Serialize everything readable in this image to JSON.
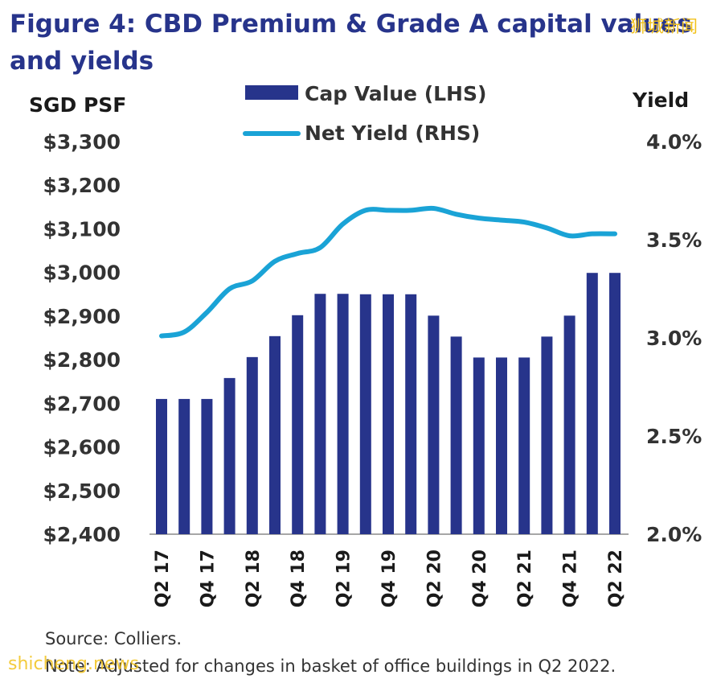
{
  "chart_data": {
    "type": "bar+line",
    "title_line1": "Figure 4: CBD Premium & Grade A capital values",
    "title_line2": "and yields",
    "ylabel_left": "SGD PSF",
    "ylabel_right": "Yield",
    "left_ticks": [
      "$3,300",
      "$3,200",
      "$3,100",
      "$3,000",
      "$2,900",
      "$2,800",
      "$2,700",
      "$2,600",
      "$2,500",
      "$2,400"
    ],
    "right_ticks": [
      "4.0%",
      "3.5%",
      "3.0%",
      "2.5%",
      "2.0%"
    ],
    "ylim_left": [
      2400,
      3300
    ],
    "ylim_right": [
      2.0,
      4.0
    ],
    "x_tick_labels": [
      "Q2 17",
      "Q4 17",
      "Q2 18",
      "Q4 18",
      "Q2 19",
      "Q4 19",
      "Q2 20",
      "Q4 20",
      "Q2 21",
      "Q4 21",
      "Q2 22"
    ],
    "categories": [
      "Q2 17",
      "Q3 17",
      "Q4 17",
      "Q1 18",
      "Q2 18",
      "Q3 18",
      "Q4 18",
      "Q1 19",
      "Q2 19",
      "Q3 19",
      "Q4 19",
      "Q1 20",
      "Q2 20",
      "Q3 20",
      "Q4 20",
      "Q1 21",
      "Q2 21",
      "Q3 21",
      "Q4 21",
      "Q1 22",
      "Q2 22"
    ],
    "series": [
      {
        "name": "Cap Value (LHS)",
        "kind": "bar",
        "axis": "left",
        "color": "#27348b",
        "values": [
          2710,
          2710,
          2710,
          2758,
          2806,
          2854,
          2902,
          2951,
          2951,
          2950,
          2950,
          2950,
          2901,
          2853,
          2805,
          2805,
          2805,
          2853,
          2901,
          2999,
          2999
        ]
      },
      {
        "name": "Net Yield (RHS)",
        "kind": "line",
        "axis": "right",
        "color": "#1aa3d6",
        "values": [
          3.01,
          3.03,
          3.13,
          3.25,
          3.29,
          3.39,
          3.43,
          3.46,
          3.58,
          3.65,
          3.65,
          3.65,
          3.66,
          3.63,
          3.61,
          3.6,
          3.59,
          3.56,
          3.52,
          3.53,
          3.53
        ]
      }
    ],
    "grid": false,
    "legend_position": "top-center"
  },
  "notes": {
    "source": "Source: Colliers.",
    "note": "Note: Adjusted for changes in basket of office buildings in Q2 2022."
  },
  "watermarks": {
    "top_right": "狮城新闻",
    "bottom_left": "shicheng.news"
  }
}
